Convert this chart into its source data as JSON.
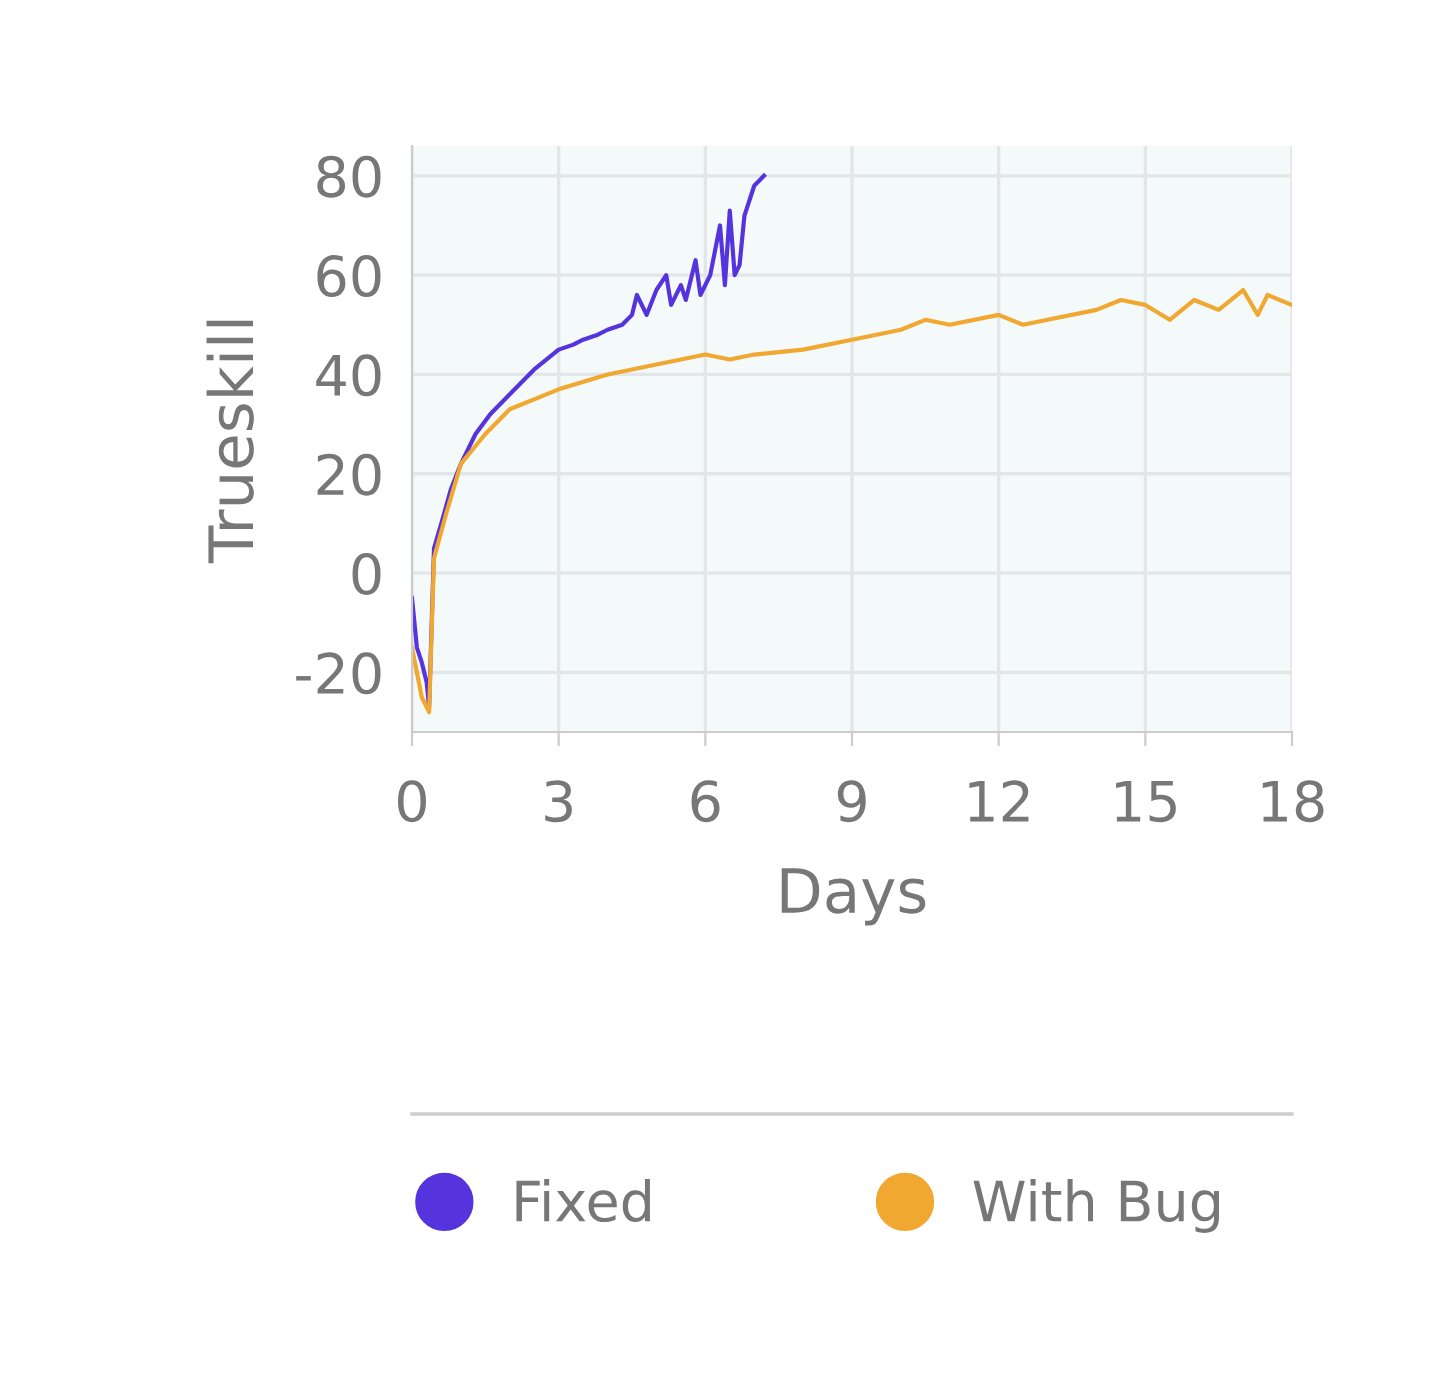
{
  "chart_data": {
    "type": "line",
    "xlabel": "Days",
    "ylabel": "Trueskill",
    "xlim": [
      0,
      18
    ],
    "xticks": [
      0,
      3,
      6,
      9,
      12,
      15,
      18
    ],
    "ylim": [
      -32,
      86
    ],
    "yticks": [
      -20,
      0,
      20,
      40,
      60,
      80
    ],
    "grid": true,
    "legend": "bottom",
    "marker": "none",
    "line_style": "solid",
    "series": [
      {
        "name": "Fixed",
        "color": "#5533dd",
        "x": [
          0,
          0.1,
          0.2,
          0.3,
          0.35,
          0.45,
          0.6,
          0.8,
          1.0,
          1.3,
          1.6,
          2.0,
          2.5,
          3.0,
          3.3,
          3.5,
          3.8,
          4.0,
          4.3,
          4.5,
          4.6,
          4.8,
          5.0,
          5.2,
          5.3,
          5.5,
          5.6,
          5.8,
          5.9,
          6.1,
          6.3,
          6.4,
          6.5,
          6.6,
          6.7,
          6.8,
          7.0,
          7.2
        ],
        "values": [
          -5,
          -15,
          -18,
          -22,
          -27,
          5,
          10,
          17,
          22,
          28,
          32,
          36,
          41,
          45,
          46,
          47,
          48,
          49,
          50,
          52,
          56,
          52,
          57,
          60,
          54,
          58,
          55,
          63,
          56,
          60,
          70,
          58,
          73,
          60,
          62,
          72,
          78,
          80
        ]
      },
      {
        "name": "With Bug",
        "color": "#f0a830",
        "x": [
          0,
          0.2,
          0.35,
          0.45,
          0.7,
          1.0,
          1.5,
          2.0,
          3.0,
          4.0,
          5.0,
          6.0,
          6.5,
          7.0,
          8.0,
          9.0,
          10.0,
          10.5,
          11.0,
          12.0,
          12.5,
          13.0,
          14.0,
          14.5,
          15.0,
          15.5,
          16.0,
          16.5,
          17.0,
          17.3,
          17.5,
          18.0
        ],
        "values": [
          -15,
          -25,
          -28,
          3,
          12,
          22,
          28,
          33,
          37,
          40,
          42,
          44,
          43,
          44,
          45,
          47,
          49,
          51,
          50,
          52,
          50,
          51,
          53,
          55,
          54,
          51,
          55,
          53,
          57,
          52,
          56,
          54
        ]
      }
    ]
  }
}
